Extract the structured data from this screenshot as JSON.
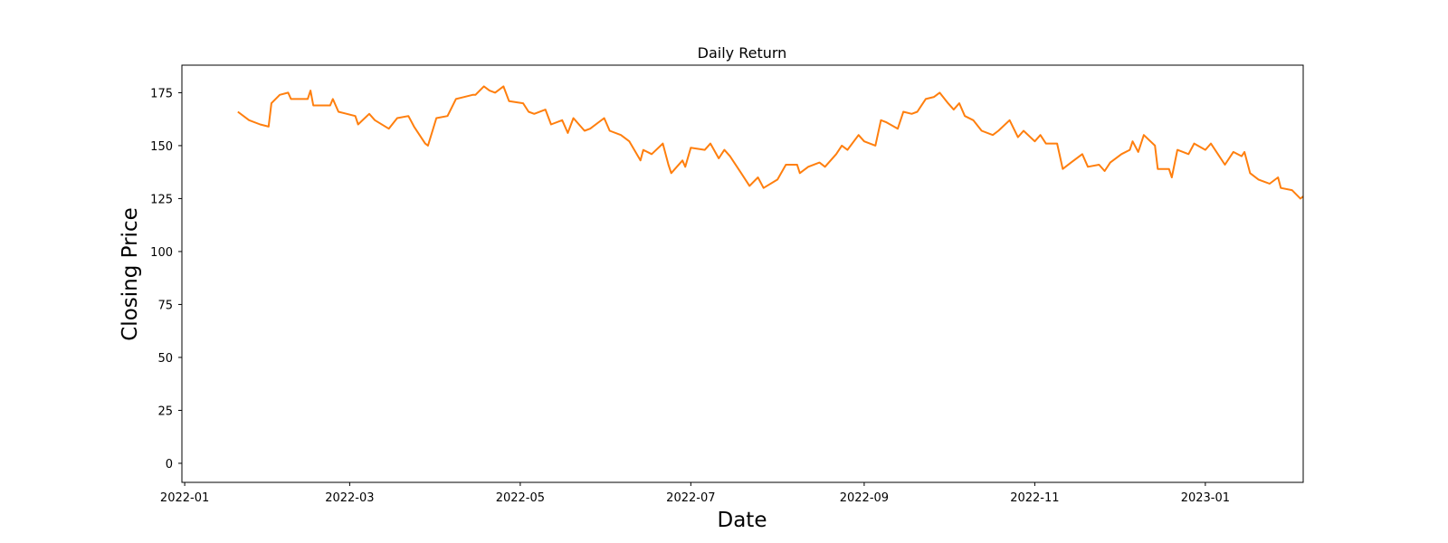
{
  "chart_data": {
    "type": "line",
    "title": "Daily Return",
    "xlabel": "Date",
    "ylabel": "Closing Price",
    "x_tick_labels": [
      "2022-01",
      "2022-03",
      "2022-05",
      "2022-07",
      "2022-09",
      "2022-11",
      "2023-01"
    ],
    "x_tick_dates": [
      "2022-01-01",
      "2022-03-01",
      "2022-05-01",
      "2022-07-01",
      "2022-09-01",
      "2022-11-01",
      "2023-01-01"
    ],
    "xlim": [
      "2021-12-31",
      "2023-02-05"
    ],
    "y_ticks": [
      0,
      25,
      50,
      75,
      100,
      125,
      150,
      175
    ],
    "ylim": [
      -9,
      188
    ],
    "grid": false,
    "legend": "none",
    "series": [
      {
        "color": "#ff7f0e",
        "style": "solid",
        "points": [
          [
            "2022-01-20",
            166
          ],
          [
            "2022-01-24",
            162
          ],
          [
            "2022-01-28",
            160
          ],
          [
            "2022-01-31",
            159
          ],
          [
            "2022-02-01",
            170
          ],
          [
            "2022-02-04",
            174
          ],
          [
            "2022-02-07",
            175
          ],
          [
            "2022-02-08",
            172
          ],
          [
            "2022-02-14",
            172
          ],
          [
            "2022-02-15",
            176
          ],
          [
            "2022-02-16",
            169
          ],
          [
            "2022-02-22",
            169
          ],
          [
            "2022-02-23",
            172
          ],
          [
            "2022-02-25",
            166
          ],
          [
            "2022-03-03",
            164
          ],
          [
            "2022-03-04",
            160
          ],
          [
            "2022-03-08",
            165
          ],
          [
            "2022-03-10",
            162
          ],
          [
            "2022-03-15",
            158
          ],
          [
            "2022-03-18",
            163
          ],
          [
            "2022-03-22",
            164
          ],
          [
            "2022-03-24",
            159
          ],
          [
            "2022-03-28",
            151
          ],
          [
            "2022-03-29",
            150
          ],
          [
            "2022-04-01",
            163
          ],
          [
            "2022-04-05",
            164
          ],
          [
            "2022-04-08",
            172
          ],
          [
            "2022-04-14",
            174
          ],
          [
            "2022-04-15",
            174
          ],
          [
            "2022-04-18",
            178
          ],
          [
            "2022-04-20",
            176
          ],
          [
            "2022-04-22",
            175
          ],
          [
            "2022-04-25",
            178
          ],
          [
            "2022-04-27",
            171
          ],
          [
            "2022-05-02",
            170
          ],
          [
            "2022-05-04",
            166
          ],
          [
            "2022-05-06",
            165
          ],
          [
            "2022-05-10",
            167
          ],
          [
            "2022-05-12",
            160
          ],
          [
            "2022-05-16",
            162
          ],
          [
            "2022-05-18",
            156
          ],
          [
            "2022-05-20",
            163
          ],
          [
            "2022-05-24",
            157
          ],
          [
            "2022-05-26",
            158
          ],
          [
            "2022-05-31",
            163
          ],
          [
            "2022-06-02",
            157
          ],
          [
            "2022-06-06",
            155
          ],
          [
            "2022-06-09",
            152
          ],
          [
            "2022-06-13",
            143
          ],
          [
            "2022-06-14",
            148
          ],
          [
            "2022-06-17",
            146
          ],
          [
            "2022-06-21",
            151
          ],
          [
            "2022-06-23",
            141
          ],
          [
            "2022-06-24",
            137
          ],
          [
            "2022-06-28",
            143
          ],
          [
            "2022-06-29",
            140
          ],
          [
            "2022-07-01",
            149
          ],
          [
            "2022-07-06",
            148
          ],
          [
            "2022-07-08",
            151
          ],
          [
            "2022-07-11",
            144
          ],
          [
            "2022-07-13",
            148
          ],
          [
            "2022-07-15",
            145
          ],
          [
            "2022-07-19",
            137
          ],
          [
            "2022-07-21",
            133
          ],
          [
            "2022-07-22",
            131
          ],
          [
            "2022-07-25",
            135
          ],
          [
            "2022-07-27",
            130
          ],
          [
            "2022-08-01",
            134
          ],
          [
            "2022-08-04",
            141
          ],
          [
            "2022-08-08",
            141
          ],
          [
            "2022-08-09",
            137
          ],
          [
            "2022-08-12",
            140
          ],
          [
            "2022-08-16",
            142
          ],
          [
            "2022-08-18",
            140
          ],
          [
            "2022-08-22",
            146
          ],
          [
            "2022-08-24",
            150
          ],
          [
            "2022-08-26",
            148
          ],
          [
            "2022-08-30",
            155
          ],
          [
            "2022-09-01",
            152
          ],
          [
            "2022-09-05",
            150
          ],
          [
            "2022-09-07",
            162
          ],
          [
            "2022-09-09",
            161
          ],
          [
            "2022-09-13",
            158
          ],
          [
            "2022-09-15",
            166
          ],
          [
            "2022-09-18",
            165
          ],
          [
            "2022-09-20",
            166
          ],
          [
            "2022-09-23",
            172
          ],
          [
            "2022-09-26",
            173
          ],
          [
            "2022-09-28",
            175
          ],
          [
            "2022-10-01",
            170
          ],
          [
            "2022-10-03",
            167
          ],
          [
            "2022-10-05",
            170
          ],
          [
            "2022-10-07",
            164
          ],
          [
            "2022-10-10",
            162
          ],
          [
            "2022-10-13",
            157
          ],
          [
            "2022-10-17",
            155
          ],
          [
            "2022-10-19",
            157
          ],
          [
            "2022-10-23",
            162
          ],
          [
            "2022-10-26",
            154
          ],
          [
            "2022-10-28",
            157
          ],
          [
            "2022-11-01",
            152
          ],
          [
            "2022-11-03",
            155
          ],
          [
            "2022-11-05",
            151
          ],
          [
            "2022-11-09",
            151
          ],
          [
            "2022-11-11",
            139
          ],
          [
            "2022-11-14",
            142
          ],
          [
            "2022-11-18",
            146
          ],
          [
            "2022-11-20",
            140
          ],
          [
            "2022-11-24",
            141
          ],
          [
            "2022-11-26",
            138
          ],
          [
            "2022-11-28",
            142
          ],
          [
            "2022-12-02",
            146
          ],
          [
            "2022-12-05",
            148
          ],
          [
            "2022-12-06",
            152
          ],
          [
            "2022-12-08",
            147
          ],
          [
            "2022-12-10",
            155
          ],
          [
            "2022-12-14",
            150
          ],
          [
            "2022-12-15",
            139
          ],
          [
            "2022-12-19",
            139
          ],
          [
            "2022-12-20",
            135
          ],
          [
            "2022-12-22",
            148
          ],
          [
            "2022-12-26",
            146
          ],
          [
            "2022-12-28",
            151
          ],
          [
            "2023-01-01",
            148
          ],
          [
            "2023-01-03",
            151
          ],
          [
            "2023-01-05",
            147
          ],
          [
            "2023-01-08",
            141
          ],
          [
            "2023-01-11",
            147
          ],
          [
            "2023-01-14",
            145
          ],
          [
            "2023-01-15",
            147
          ],
          [
            "2023-01-17",
            137
          ],
          [
            "2023-01-20",
            134
          ],
          [
            "2023-01-24",
            132
          ],
          [
            "2023-01-27",
            135
          ],
          [
            "2023-01-28",
            130
          ],
          [
            "2023-02-01",
            129
          ],
          [
            "2023-02-04",
            125
          ],
          [
            "2023-02-05",
            126
          ]
        ]
      }
    ]
  }
}
